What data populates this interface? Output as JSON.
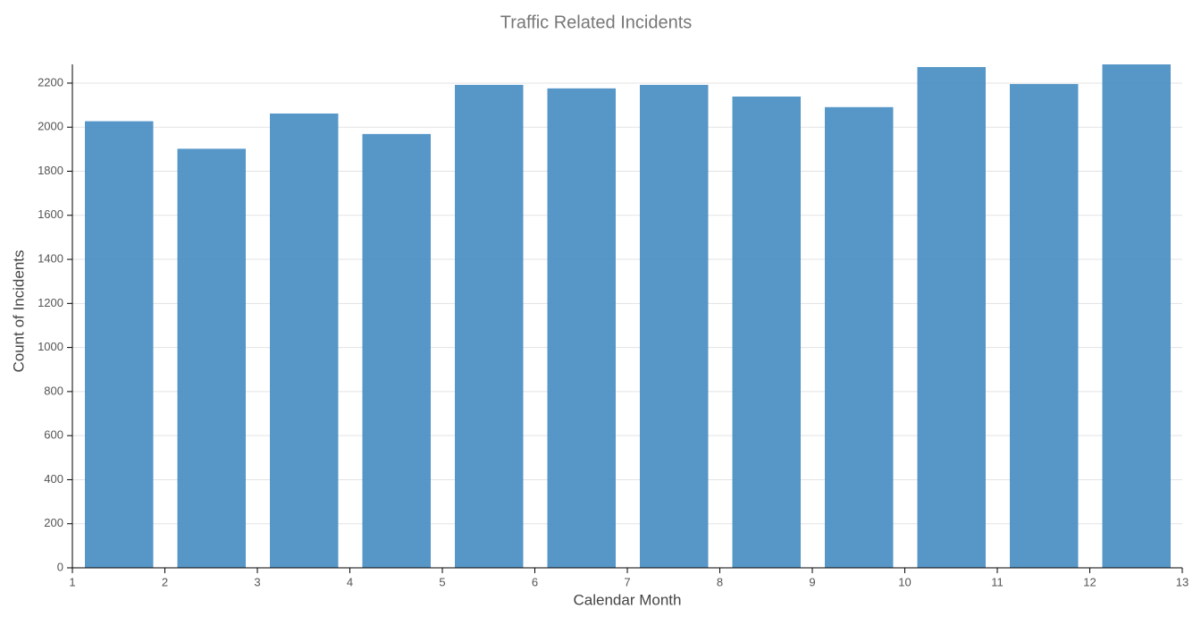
{
  "chart_data": {
    "type": "histogram",
    "title": "Traffic Related Incidents",
    "x_label": "Calendar Month",
    "y_label": "Count of Incidents",
    "bins": [
      1,
      2,
      3,
      4,
      5,
      6,
      7,
      8,
      9,
      10,
      11,
      12,
      13
    ],
    "counts": [
      2027,
      1902,
      2062,
      1969,
      2192,
      2176,
      2192,
      2139,
      2091,
      2273,
      2196,
      2285
    ],
    "color": "#4a8fc4",
    "xlim": [
      1,
      13
    ],
    "xticks": [
      1,
      2,
      3,
      4,
      5,
      6,
      7,
      8,
      9,
      10,
      11,
      12,
      13
    ],
    "ylim": [
      0,
      2285
    ],
    "yticks": [
      0,
      200,
      400,
      600,
      800,
      1000,
      1200,
      1400,
      1600,
      1800,
      2000,
      2200
    ],
    "grid": true
  }
}
